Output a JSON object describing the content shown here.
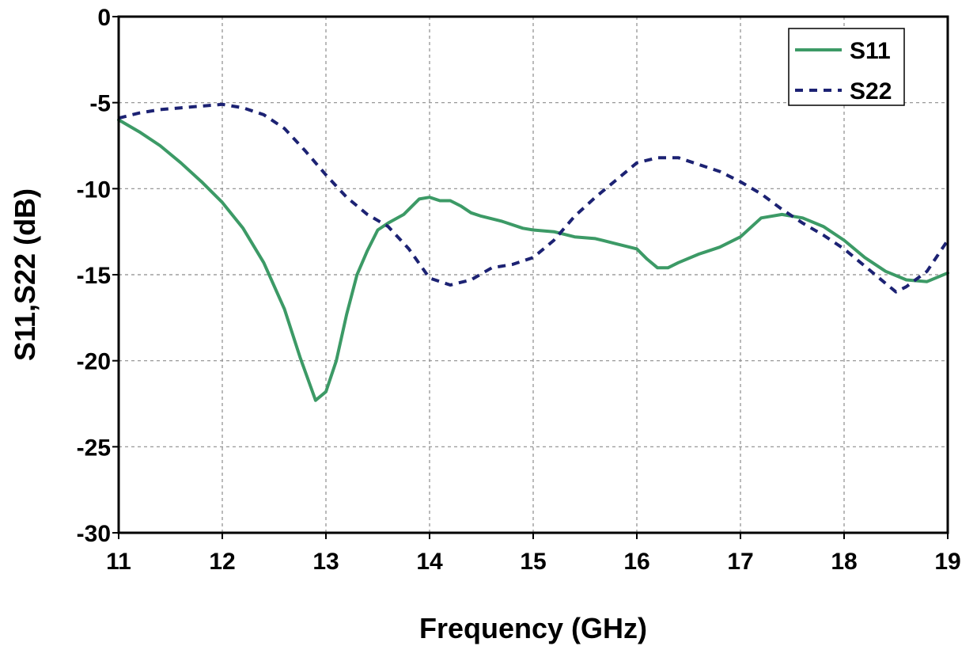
{
  "chart_data": {
    "type": "line",
    "xlabel": "Frequency (GHz)",
    "ylabel": "S11,S22 (dB)",
    "xlim": [
      11,
      19
    ],
    "ylim": [
      -30,
      0
    ],
    "xticks": [
      11,
      12,
      13,
      14,
      15,
      16,
      17,
      18,
      19
    ],
    "yticks": [
      0,
      -5,
      -10,
      -15,
      -20,
      -25,
      -30
    ],
    "grid": true,
    "legend_position": "top-right",
    "series": [
      {
        "name": "S11",
        "color": "#3c9a66",
        "style": "solid",
        "x": [
          11.0,
          11.2,
          11.4,
          11.6,
          11.8,
          12.0,
          12.2,
          12.4,
          12.6,
          12.75,
          12.9,
          13.0,
          13.1,
          13.2,
          13.3,
          13.4,
          13.5,
          13.6,
          13.75,
          13.9,
          14.0,
          14.1,
          14.2,
          14.3,
          14.4,
          14.5,
          14.7,
          14.9,
          15.0,
          15.2,
          15.4,
          15.6,
          15.8,
          16.0,
          16.1,
          16.2,
          16.3,
          16.4,
          16.6,
          16.8,
          17.0,
          17.2,
          17.4,
          17.6,
          17.8,
          18.0,
          18.2,
          18.4,
          18.6,
          18.8,
          19.0
        ],
        "y": [
          -6.0,
          -6.7,
          -7.5,
          -8.5,
          -9.6,
          -10.8,
          -12.3,
          -14.3,
          -17.0,
          -19.8,
          -22.3,
          -21.8,
          -20.0,
          -17.3,
          -15.0,
          -13.6,
          -12.4,
          -12.0,
          -11.5,
          -10.6,
          -10.5,
          -10.7,
          -10.7,
          -11.0,
          -11.4,
          -11.6,
          -11.9,
          -12.3,
          -12.4,
          -12.5,
          -12.8,
          -12.9,
          -13.2,
          -13.5,
          -14.1,
          -14.6,
          -14.6,
          -14.3,
          -13.8,
          -13.4,
          -12.8,
          -11.7,
          -11.5,
          -11.7,
          -12.2,
          -13.0,
          -14.0,
          -14.8,
          -15.3,
          -15.4,
          -14.9
        ]
      },
      {
        "name": "S22",
        "color": "#1c2273",
        "style": "dashed",
        "x": [
          11.0,
          11.2,
          11.4,
          11.6,
          11.8,
          12.0,
          12.2,
          12.4,
          12.6,
          12.8,
          13.0,
          13.2,
          13.4,
          13.6,
          13.8,
          14.0,
          14.2,
          14.4,
          14.6,
          14.8,
          15.0,
          15.2,
          15.4,
          15.6,
          15.8,
          16.0,
          16.2,
          16.4,
          16.6,
          16.8,
          17.0,
          17.2,
          17.4,
          17.6,
          17.8,
          18.0,
          18.2,
          18.4,
          18.5,
          18.6,
          18.8,
          18.9,
          19.0
        ],
        "y": [
          -5.9,
          -5.6,
          -5.4,
          -5.3,
          -5.2,
          -5.1,
          -5.3,
          -5.7,
          -6.5,
          -7.8,
          -9.2,
          -10.5,
          -11.5,
          -12.2,
          -13.5,
          -15.2,
          -15.6,
          -15.3,
          -14.6,
          -14.4,
          -14.0,
          -13.0,
          -11.6,
          -10.5,
          -9.5,
          -8.5,
          -8.2,
          -8.2,
          -8.6,
          -9.0,
          -9.6,
          -10.3,
          -11.2,
          -12.0,
          -12.7,
          -13.5,
          -14.5,
          -15.5,
          -16.0,
          -15.7,
          -14.8,
          -13.9,
          -13.0
        ]
      }
    ]
  }
}
